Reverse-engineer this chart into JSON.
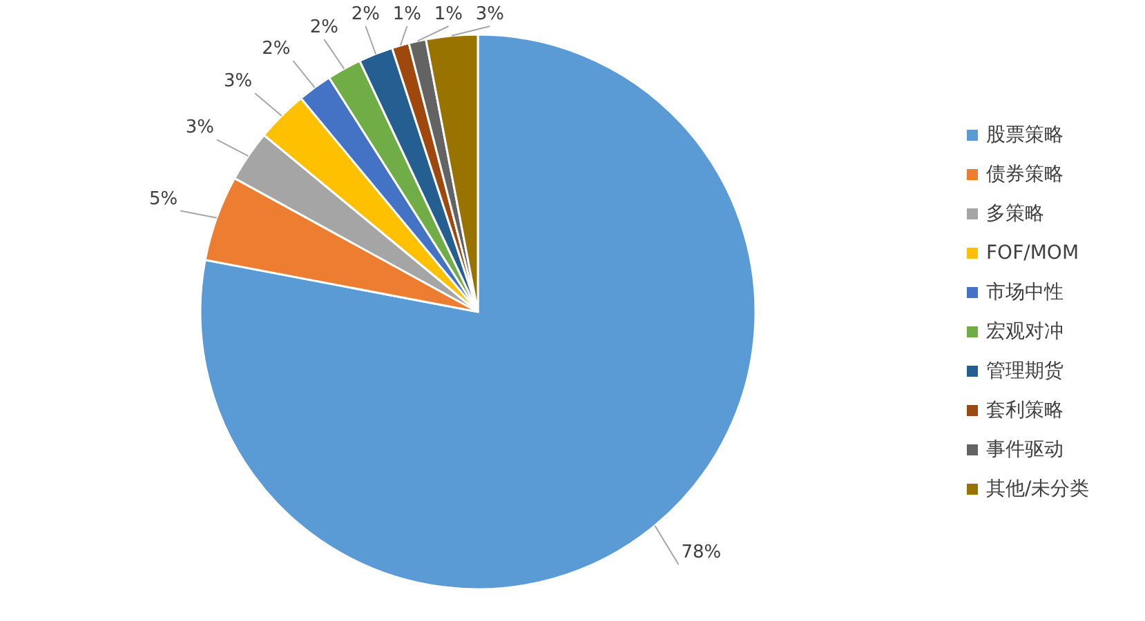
{
  "chart_data": {
    "type": "pie",
    "categories": [
      "股票策略",
      "债券策略",
      "多策略",
      "FOF/MOM",
      "市场中性",
      "宏观对冲",
      "管理期货",
      "套利策略",
      "事件驱动",
      "其他/未分类"
    ],
    "values": [
      78,
      5,
      3,
      3,
      2,
      2,
      2,
      1,
      1,
      3
    ],
    "colors": [
      "#5b9bd5",
      "#ed7d31",
      "#a5a5a5",
      "#ffc000",
      "#4472c4",
      "#70ad47",
      "#255e91",
      "#9e480e",
      "#636363",
      "#997300"
    ],
    "value_labels": [
      "78%",
      "5%",
      "3%",
      "3%",
      "2%",
      "2%",
      "2%",
      "1%",
      "1%",
      "3%"
    ],
    "legend": "right"
  }
}
